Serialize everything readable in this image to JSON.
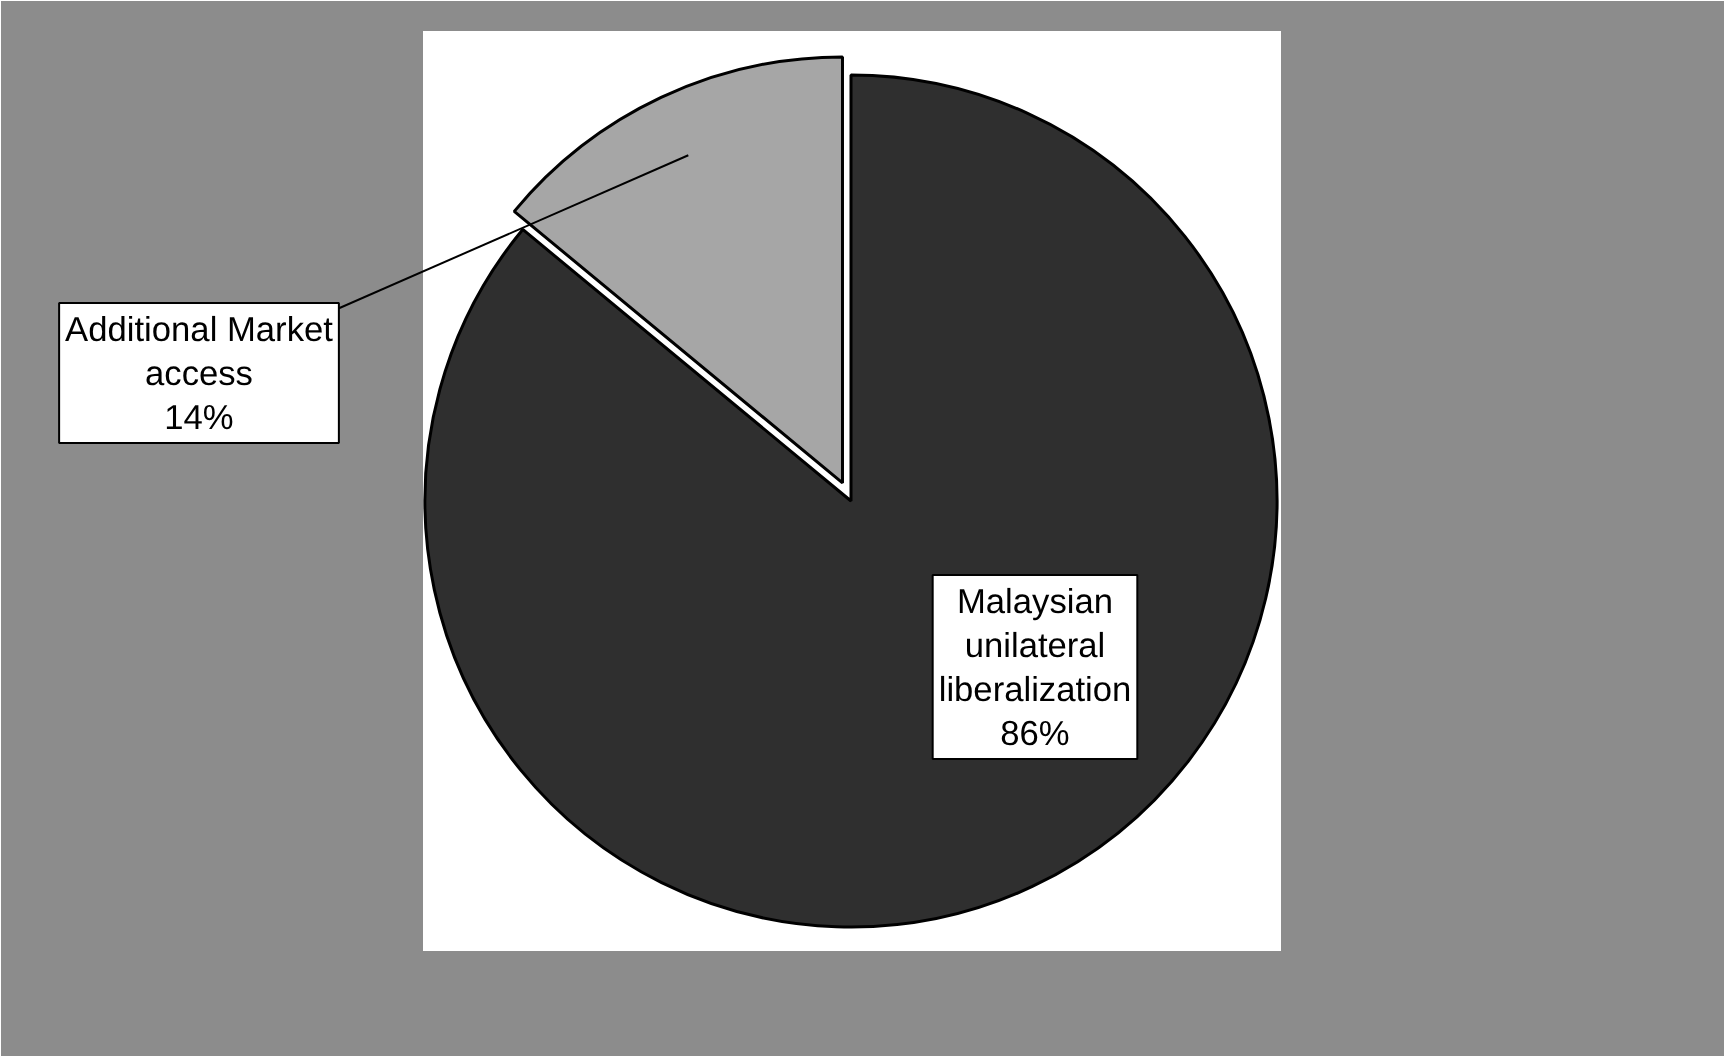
{
  "chart_data": {
    "type": "pie",
    "categories": [
      "Additional Market access",
      "Malaysian unilateral liberalization"
    ],
    "values": [
      14,
      86
    ],
    "colors": [
      "#a6a6a6",
      "#2f2f2f"
    ],
    "value_labels": [
      "14%",
      "86%"
    ]
  }
}
